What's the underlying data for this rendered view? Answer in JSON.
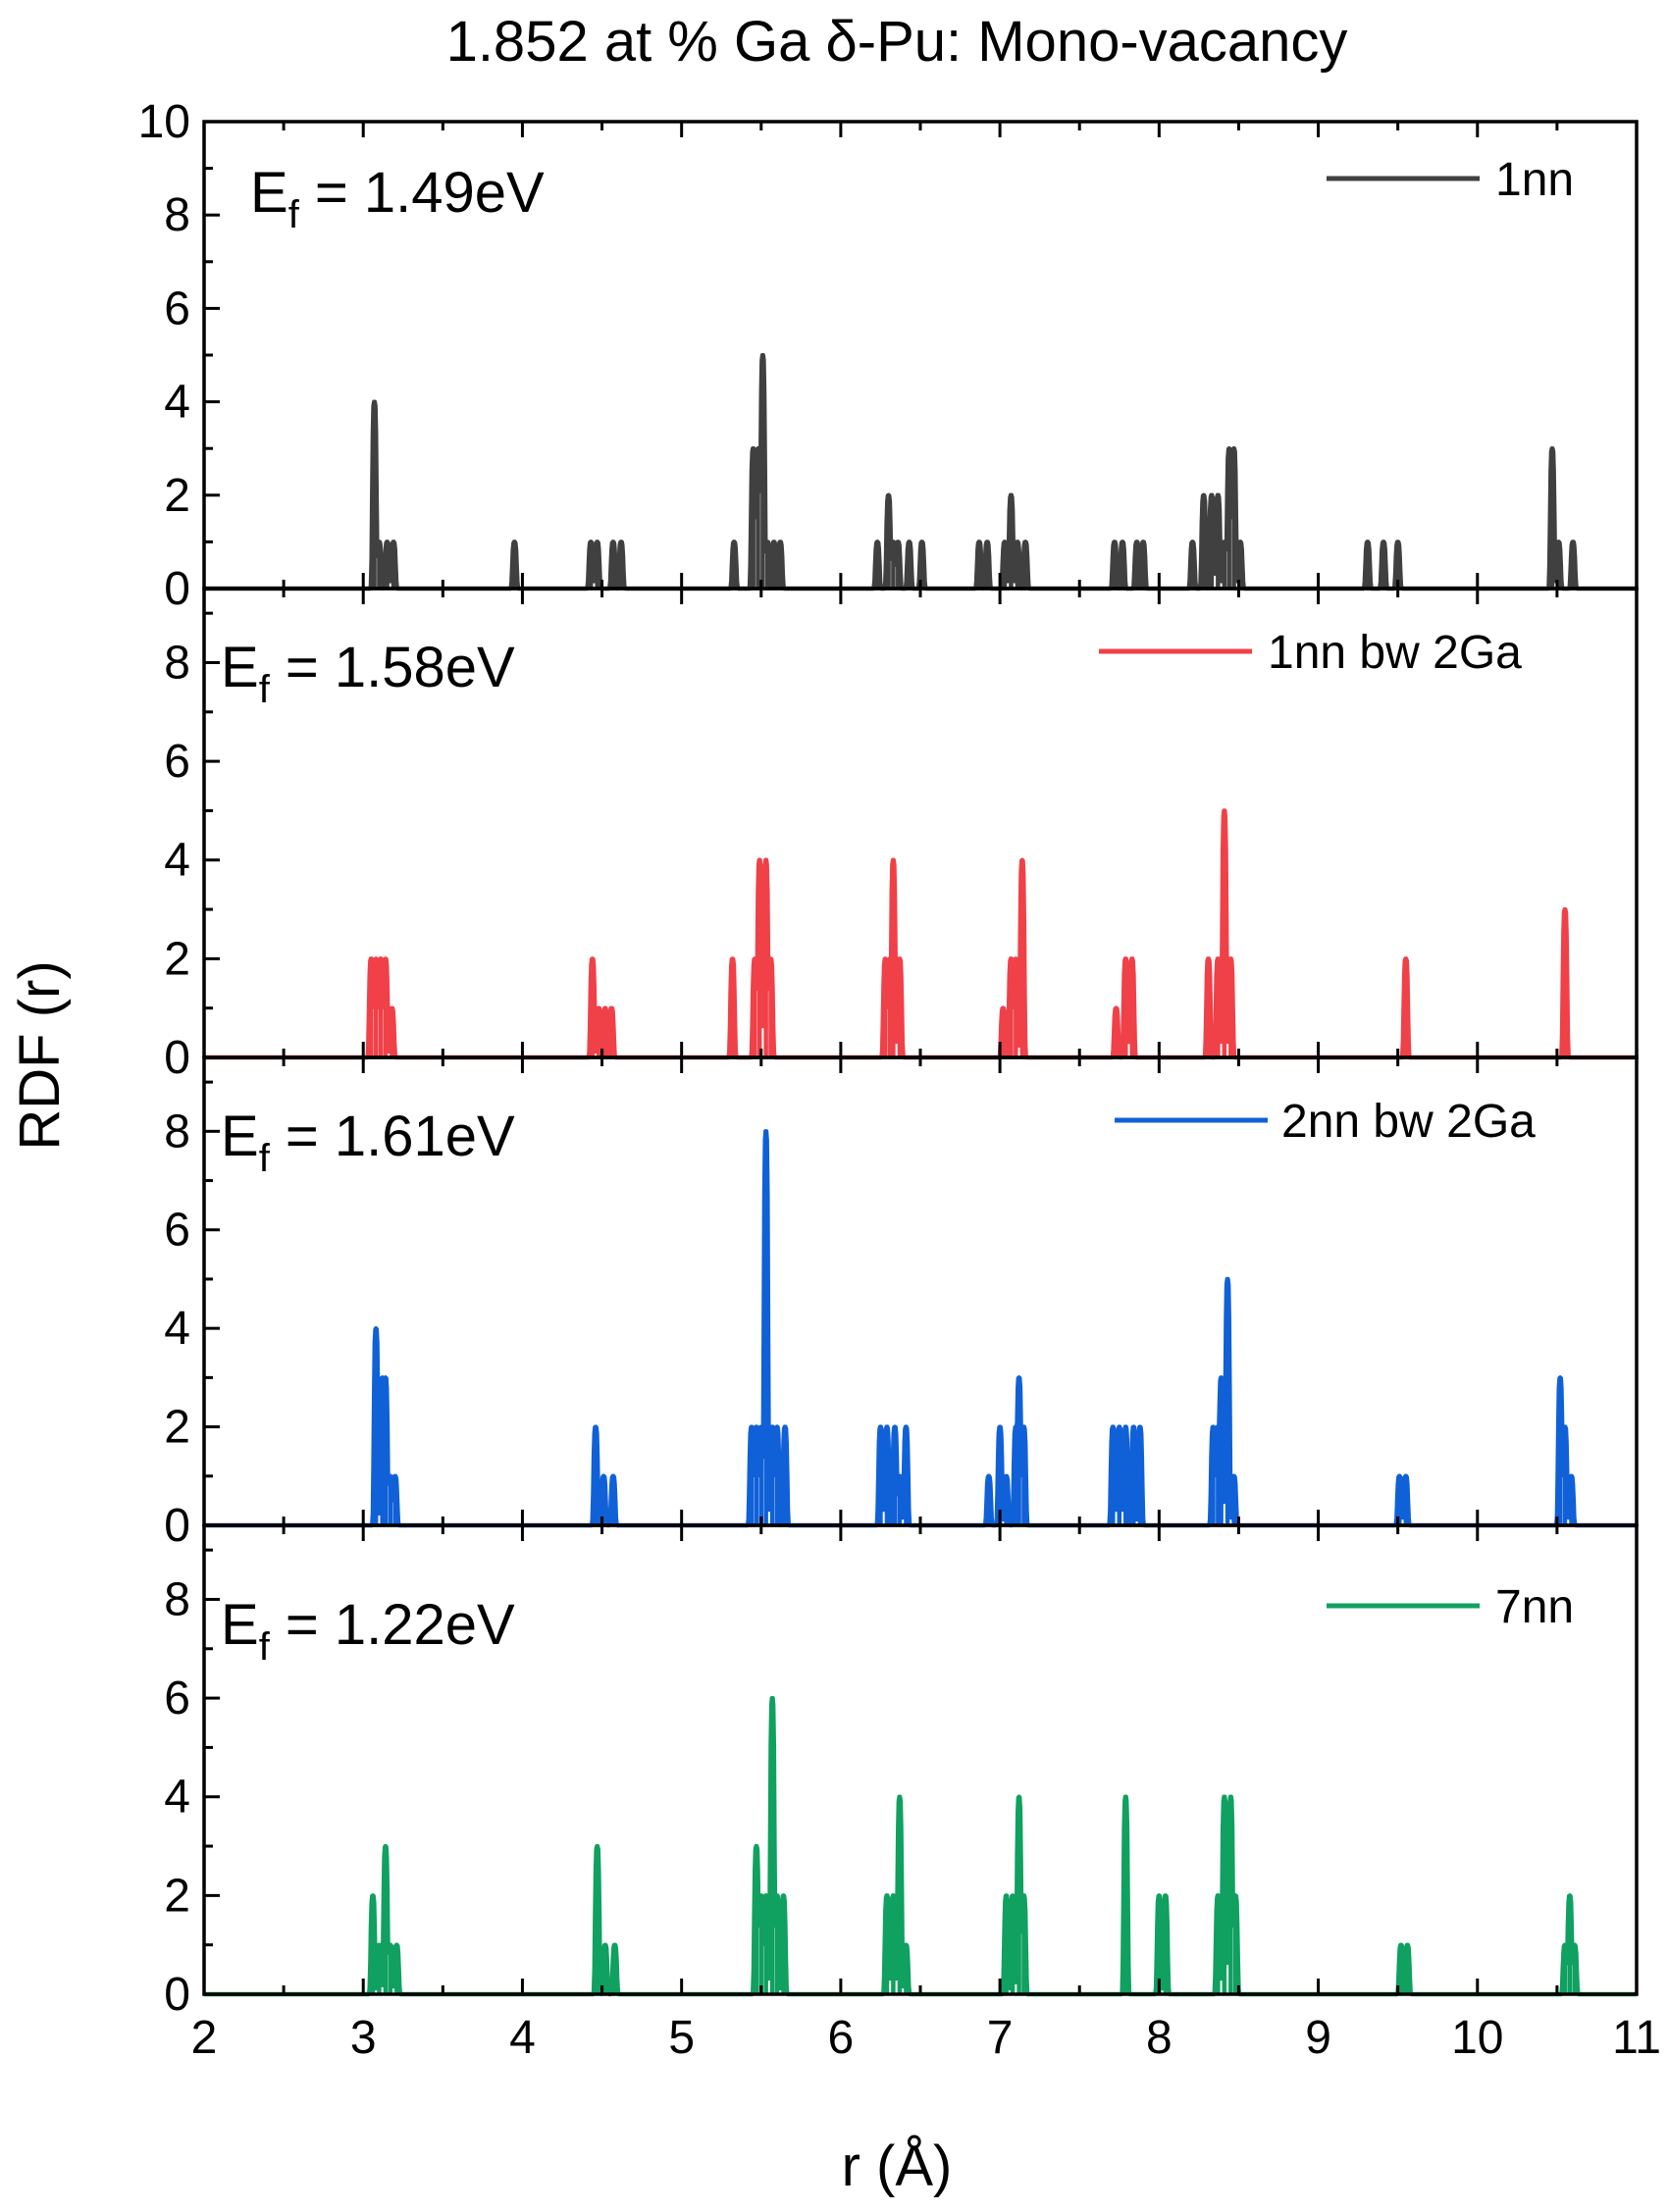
{
  "title": "1.852 at % Ga δ-Pu: Mono-vacancy",
  "axes": {
    "xlabel": "r (Å)",
    "ylabel": "RDF (r)"
  },
  "chart_data": [
    {
      "type": "line",
      "series_name": "1nn",
      "color": "#404040",
      "annotation": {
        "prefix": "E",
        "subscript": "f",
        "suffix": " = 1.49eV"
      },
      "xlim": [
        2,
        11
      ],
      "ylim": [
        0,
        10
      ],
      "yticks": [
        0,
        2,
        4,
        6,
        8,
        10
      ],
      "peaks": [
        [
          3.07,
          4
        ],
        [
          3.1,
          1
        ],
        [
          3.15,
          1
        ],
        [
          3.19,
          1
        ],
        [
          3.95,
          1
        ],
        [
          4.43,
          1
        ],
        [
          4.47,
          1
        ],
        [
          4.57,
          1
        ],
        [
          4.62,
          1
        ],
        [
          5.33,
          1
        ],
        [
          5.45,
          3
        ],
        [
          5.48,
          3
        ],
        [
          5.51,
          5
        ],
        [
          5.54,
          1
        ],
        [
          5.58,
          1
        ],
        [
          5.62,
          1
        ],
        [
          6.23,
          1
        ],
        [
          6.3,
          2
        ],
        [
          6.33,
          1
        ],
        [
          6.36,
          1
        ],
        [
          6.43,
          1
        ],
        [
          6.51,
          1
        ],
        [
          6.87,
          1
        ],
        [
          6.92,
          1
        ],
        [
          7.03,
          1
        ],
        [
          7.07,
          2
        ],
        [
          7.11,
          1
        ],
        [
          7.16,
          1
        ],
        [
          7.72,
          1
        ],
        [
          7.77,
          1
        ],
        [
          7.86,
          1
        ],
        [
          7.9,
          1
        ],
        [
          8.21,
          1
        ],
        [
          8.28,
          2
        ],
        [
          8.33,
          2
        ],
        [
          8.37,
          2
        ],
        [
          8.41,
          1
        ],
        [
          8.44,
          3
        ],
        [
          8.47,
          3
        ],
        [
          8.51,
          1
        ],
        [
          9.31,
          1
        ],
        [
          9.41,
          1
        ],
        [
          9.5,
          1
        ],
        [
          10.47,
          3
        ],
        [
          10.51,
          1
        ],
        [
          10.6,
          1
        ]
      ]
    },
    {
      "type": "line",
      "series_name": "1nn bw 2Ga",
      "color": "#f04048",
      "annotation": {
        "prefix": "E",
        "subscript": "f",
        "suffix": " = 1.58eV"
      },
      "xlim": [
        2,
        11
      ],
      "ylim": [
        0,
        9.5
      ],
      "yticks": [
        0,
        2,
        4,
        6,
        8
      ],
      "peaks": [
        [
          3.05,
          2
        ],
        [
          3.08,
          2
        ],
        [
          3.11,
          2
        ],
        [
          3.14,
          2
        ],
        [
          3.18,
          1
        ],
        [
          4.44,
          2
        ],
        [
          4.48,
          1
        ],
        [
          4.52,
          1
        ],
        [
          4.56,
          1
        ],
        [
          5.32,
          2
        ],
        [
          5.46,
          2
        ],
        [
          5.49,
          4
        ],
        [
          5.53,
          4
        ],
        [
          5.56,
          2
        ],
        [
          6.28,
          2
        ],
        [
          6.31,
          2
        ],
        [
          6.33,
          4
        ],
        [
          6.37,
          2
        ],
        [
          7.02,
          1
        ],
        [
          7.07,
          2
        ],
        [
          7.1,
          2
        ],
        [
          7.14,
          4
        ],
        [
          7.73,
          1
        ],
        [
          7.79,
          2
        ],
        [
          7.83,
          2
        ],
        [
          8.31,
          2
        ],
        [
          8.37,
          2
        ],
        [
          8.41,
          5
        ],
        [
          8.45,
          2
        ],
        [
          9.55,
          2
        ],
        [
          10.55,
          3
        ]
      ]
    },
    {
      "type": "line",
      "series_name": "2nn bw 2Ga",
      "color": "#1060d8",
      "annotation": {
        "prefix": "E",
        "subscript": "f",
        "suffix": " = 1.61eV"
      },
      "xlim": [
        2,
        11
      ],
      "ylim": [
        0,
        9.5
      ],
      "yticks": [
        0,
        2,
        4,
        6,
        8
      ],
      "peaks": [
        [
          3.08,
          4
        ],
        [
          3.12,
          3
        ],
        [
          3.14,
          3
        ],
        [
          3.17,
          1
        ],
        [
          3.2,
          1
        ],
        [
          4.46,
          2
        ],
        [
          4.51,
          1
        ],
        [
          4.57,
          1
        ],
        [
          5.44,
          2
        ],
        [
          5.47,
          2
        ],
        [
          5.5,
          2
        ],
        [
          5.53,
          8
        ],
        [
          5.57,
          2
        ],
        [
          5.6,
          2
        ],
        [
          5.65,
          2
        ],
        [
          6.25,
          2
        ],
        [
          6.29,
          2
        ],
        [
          6.34,
          2
        ],
        [
          6.37,
          1
        ],
        [
          6.41,
          2
        ],
        [
          6.93,
          1
        ],
        [
          7.0,
          2
        ],
        [
          7.04,
          1
        ],
        [
          7.1,
          2
        ],
        [
          7.12,
          3
        ],
        [
          7.15,
          2
        ],
        [
          7.71,
          2
        ],
        [
          7.75,
          2
        ],
        [
          7.79,
          2
        ],
        [
          7.84,
          2
        ],
        [
          7.88,
          2
        ],
        [
          8.34,
          2
        ],
        [
          8.37,
          2
        ],
        [
          8.39,
          3
        ],
        [
          8.43,
          5
        ],
        [
          8.47,
          1
        ],
        [
          9.51,
          1
        ],
        [
          9.55,
          1
        ],
        [
          10.52,
          3
        ],
        [
          10.55,
          2
        ],
        [
          10.59,
          1
        ]
      ]
    },
    {
      "type": "line",
      "series_name": "7nn",
      "color": "#10a060",
      "annotation": {
        "prefix": "E",
        "subscript": "f",
        "suffix": " = 1.22eV"
      },
      "xlim": [
        2,
        11
      ],
      "ylim": [
        0,
        9.5
      ],
      "yticks": [
        0,
        2,
        4,
        6,
        8
      ],
      "peaks": [
        [
          3.06,
          2
        ],
        [
          3.1,
          1
        ],
        [
          3.14,
          3
        ],
        [
          3.17,
          1
        ],
        [
          3.21,
          1
        ],
        [
          4.47,
          3
        ],
        [
          4.52,
          1
        ],
        [
          4.58,
          1
        ],
        [
          5.47,
          3
        ],
        [
          5.5,
          2
        ],
        [
          5.53,
          2
        ],
        [
          5.57,
          6
        ],
        [
          5.6,
          2
        ],
        [
          5.64,
          2
        ],
        [
          6.29,
          2
        ],
        [
          6.33,
          2
        ],
        [
          6.37,
          4
        ],
        [
          6.41,
          1
        ],
        [
          7.04,
          2
        ],
        [
          7.08,
          2
        ],
        [
          7.12,
          4
        ],
        [
          7.15,
          2
        ],
        [
          7.79,
          4
        ],
        [
          8.0,
          2
        ],
        [
          8.04,
          2
        ],
        [
          8.37,
          2
        ],
        [
          8.41,
          4
        ],
        [
          8.45,
          4
        ],
        [
          8.48,
          2
        ],
        [
          9.52,
          1
        ],
        [
          9.56,
          1
        ],
        [
          10.55,
          1
        ],
        [
          10.58,
          2
        ],
        [
          10.61,
          1
        ]
      ]
    }
  ]
}
